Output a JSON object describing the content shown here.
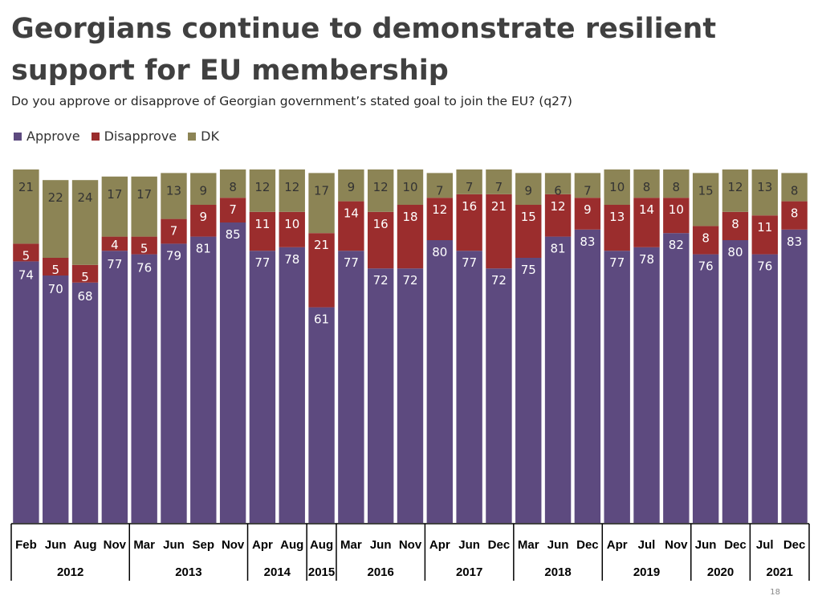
{
  "title": "Georgians continue to demonstrate resilient support for EU membership",
  "subtitle": "Do you approve or disapprove of Georgian government’s stated goal to join the EU? (q27)",
  "page_number": "18",
  "colors": {
    "approve": "#5d4a7f",
    "disapprove": "#9b2d2d",
    "dk": "#8c8455"
  },
  "chart_data": {
    "type": "bar",
    "stacked": true,
    "title": "Georgians continue to demonstrate resilient support for EU membership",
    "ylim": [
      0,
      100
    ],
    "legend": [
      "Approve",
      "Disapprove",
      "DK"
    ],
    "categories": [
      "Feb",
      "Jun",
      "Aug",
      "Nov",
      "Mar",
      "Jun",
      "Sep",
      "Nov",
      "Apr",
      "Aug",
      "Aug",
      "Mar",
      "Jun",
      "Nov",
      "Apr",
      "Jun",
      "Dec",
      "Mar",
      "Jun",
      "Dec",
      "Apr",
      "Jul",
      "Nov",
      "Jun",
      "Dec",
      "Jul",
      "Dec"
    ],
    "series": [
      {
        "name": "Approve",
        "values": [
          74,
          70,
          68,
          77,
          76,
          79,
          81,
          85,
          77,
          78,
          61,
          77,
          72,
          72,
          80,
          77,
          72,
          75,
          81,
          83,
          77,
          78,
          82,
          76,
          80,
          76,
          83
        ]
      },
      {
        "name": "Disapprove",
        "values": [
          5,
          5,
          5,
          4,
          5,
          7,
          9,
          7,
          11,
          10,
          21,
          14,
          16,
          18,
          12,
          16,
          21,
          15,
          12,
          9,
          13,
          14,
          10,
          8,
          8,
          11,
          8
        ]
      },
      {
        "name": "DK",
        "values": [
          21,
          22,
          24,
          17,
          17,
          13,
          9,
          8,
          12,
          12,
          17,
          9,
          12,
          10,
          7,
          7,
          7,
          9,
          6,
          7,
          10,
          8,
          8,
          15,
          12,
          13,
          8
        ]
      }
    ],
    "year_groups": [
      {
        "year": "2012",
        "count": 4
      },
      {
        "year": "2013",
        "count": 4
      },
      {
        "year": "2014",
        "count": 2
      },
      {
        "year": "2015",
        "count": 1
      },
      {
        "year": "2016",
        "count": 3
      },
      {
        "year": "2017",
        "count": 3
      },
      {
        "year": "2018",
        "count": 3
      },
      {
        "year": "2019",
        "count": 3
      },
      {
        "year": "2020",
        "count": 2
      },
      {
        "year": "2021",
        "count": 2
      }
    ]
  }
}
